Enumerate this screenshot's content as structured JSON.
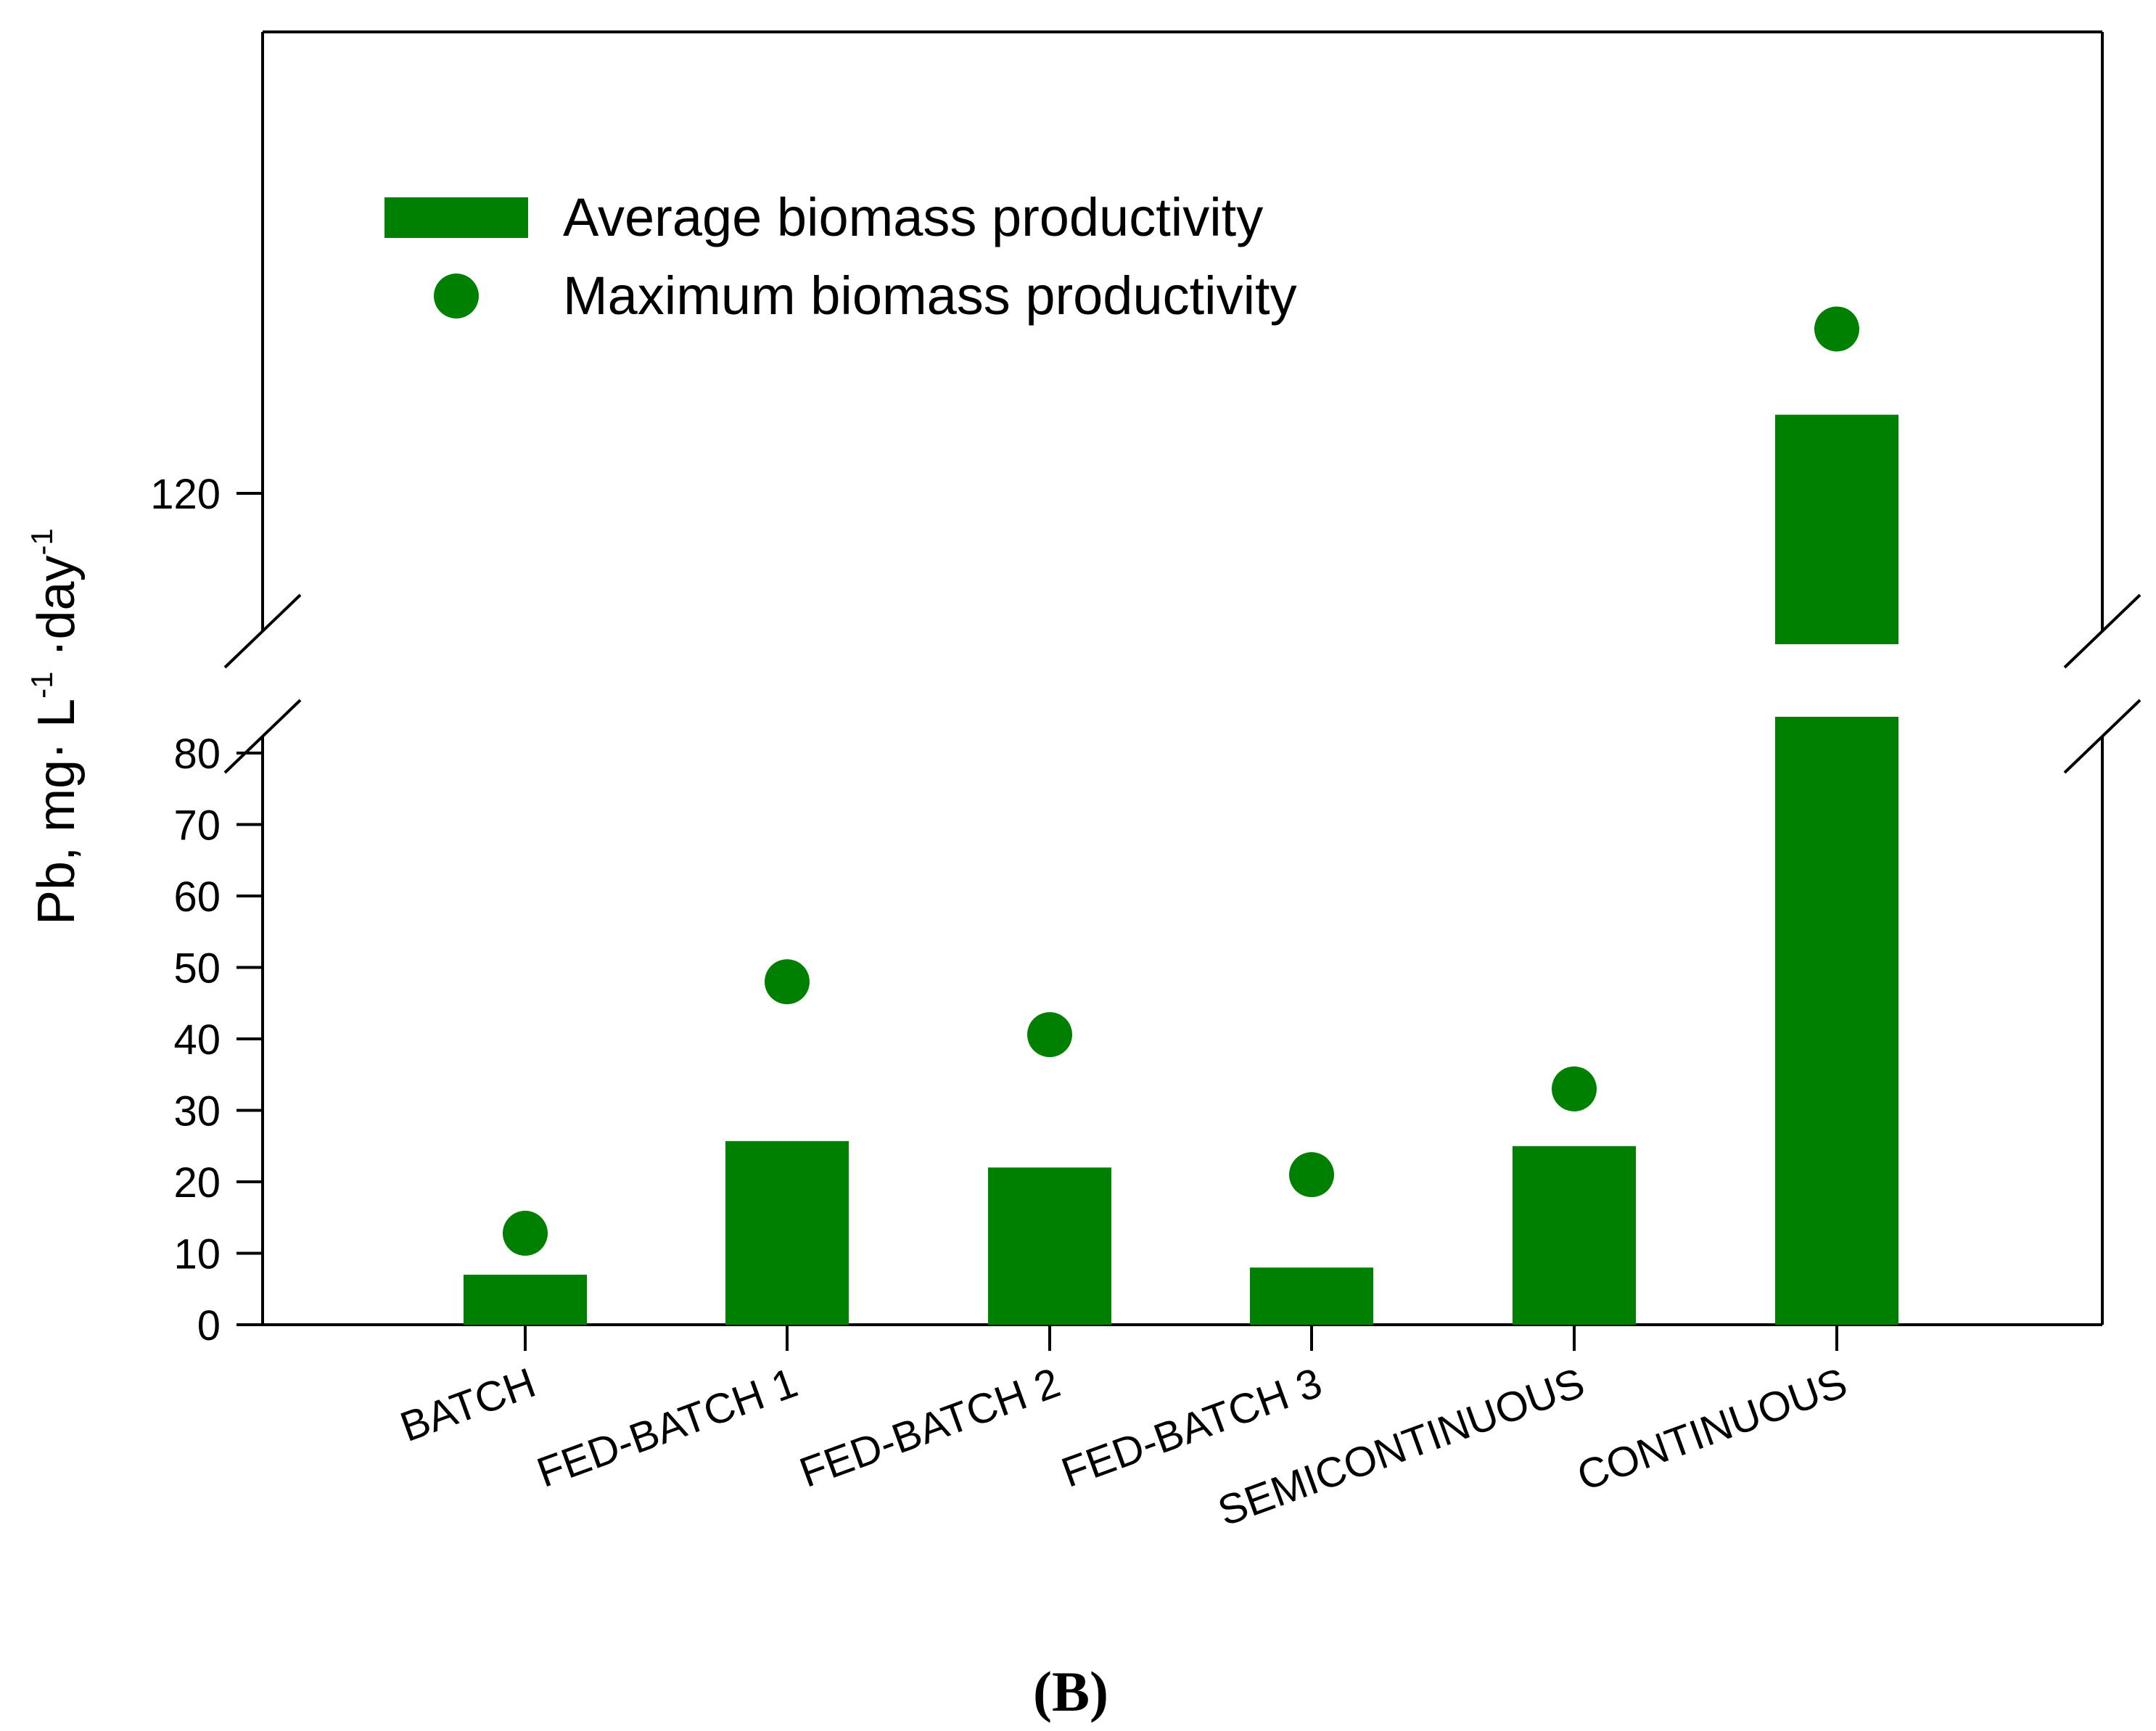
{
  "chart_data": {
    "type": "bar",
    "title": "",
    "panel_label": "(B)",
    "xlabel": "",
    "ylabel": {
      "main": "Pb, mg· L",
      "exp1": "-1",
      "mid": " ·day",
      "exp2": "-1"
    },
    "categories": [
      "BATCH",
      "FED-BATCH 1",
      "FED-BATCH 2",
      "FED-BATCH 3",
      "SEMICONTINUOUS",
      "CONTINUOUS"
    ],
    "series": [
      {
        "name": "Average biomass productivity",
        "kind": "bar",
        "values": [
          7,
          25.7,
          22,
          8,
          25,
          131
        ]
      },
      {
        "name": "Maximum biomass productivity",
        "kind": "point",
        "values": [
          12.8,
          48,
          40.6,
          21,
          33,
          143
        ]
      }
    ],
    "y_axis": {
      "broken": true,
      "lower_segment": {
        "range": [
          0,
          85
        ],
        "ticks": [
          0,
          10,
          20,
          30,
          40,
          50,
          60,
          70,
          80
        ]
      },
      "upper_segment": {
        "range": [
          115,
          145
        ],
        "ticks": [
          120
        ]
      }
    },
    "tick_labels": {
      "lower": [
        "0",
        "10",
        "20",
        "30",
        "40",
        "50",
        "60",
        "70",
        "80"
      ],
      "upper": [
        "120"
      ]
    },
    "legend_position": "top-left",
    "colors": {
      "bar": "#008000",
      "point": "#008000"
    }
  }
}
